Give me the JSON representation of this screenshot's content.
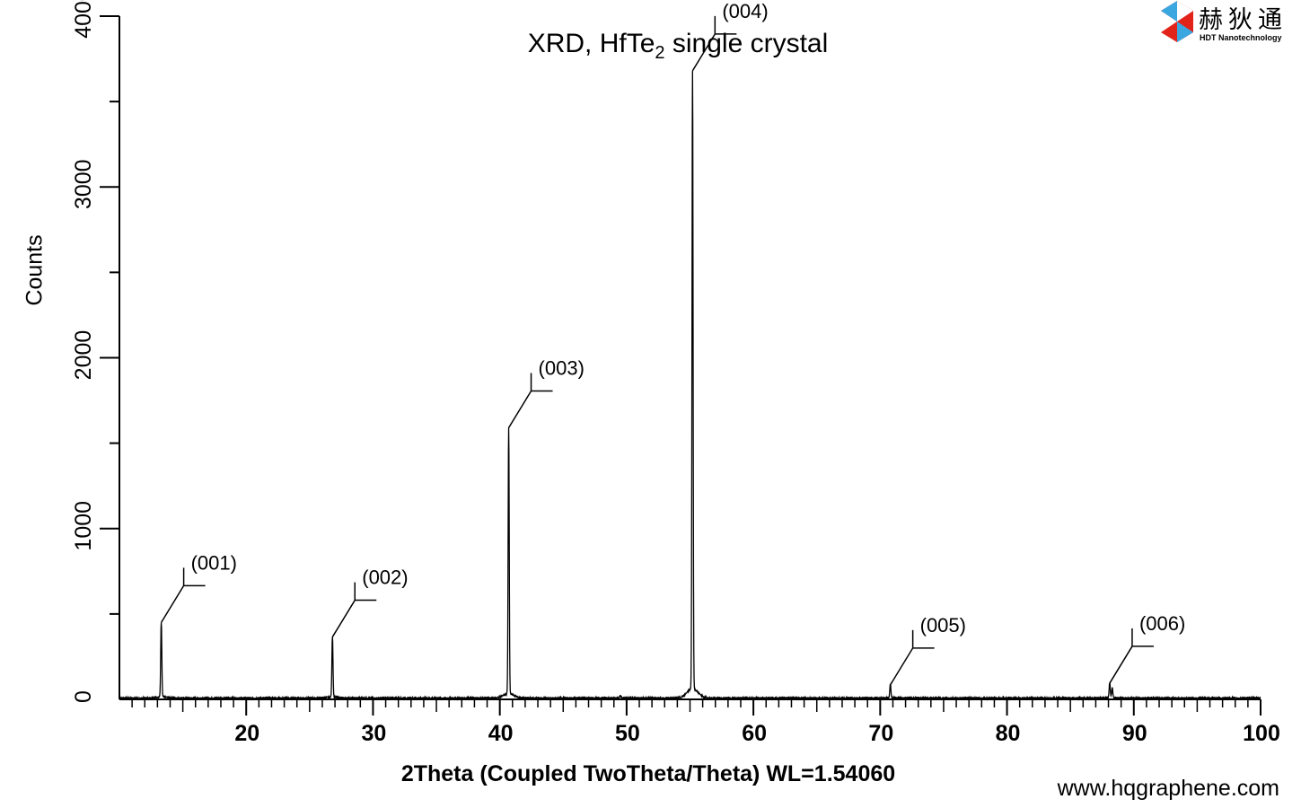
{
  "title": {
    "main": "XRD, HfTe",
    "sub": "2",
    "rest": " single crystal"
  },
  "logo": {
    "chinese": "赫狄通",
    "english": "HDT Nanotechnology",
    "colors": [
      "#e2231a",
      "#3aa7e0"
    ]
  },
  "website": "www.hqgraphene.com",
  "chart_data": {
    "type": "line",
    "title": "XRD, HfTe2 single crystal",
    "xlabel": "2Theta (Coupled TwoTheta/Theta) WL=1.54060",
    "ylabel": "Counts",
    "xlim": [
      10,
      100
    ],
    "ylim": [
      0,
      4000
    ],
    "x_ticks": [
      20,
      30,
      40,
      50,
      60,
      70,
      80,
      90,
      100
    ],
    "x_minor_step": 1,
    "y_ticks": [
      0,
      1000,
      2000,
      3000,
      4000
    ],
    "y_minor_step": 500,
    "grid": false,
    "line_color": "#000000",
    "peaks": [
      {
        "x": 13.3,
        "y": 450,
        "label": "(001)"
      },
      {
        "x": 26.8,
        "y": 365,
        "label": "(002)"
      },
      {
        "x": 40.7,
        "y": 1590,
        "label": "(003)"
      },
      {
        "x": 55.2,
        "y": 3680,
        "label": "(004)"
      },
      {
        "x": 70.8,
        "y": 85,
        "label": "(005)"
      },
      {
        "x": 88.1,
        "y": 95,
        "label": "(006)"
      }
    ],
    "minor_peaks": [
      {
        "x": 49.5,
        "y": 15
      },
      {
        "x": 88.3,
        "y": 60
      }
    ]
  }
}
